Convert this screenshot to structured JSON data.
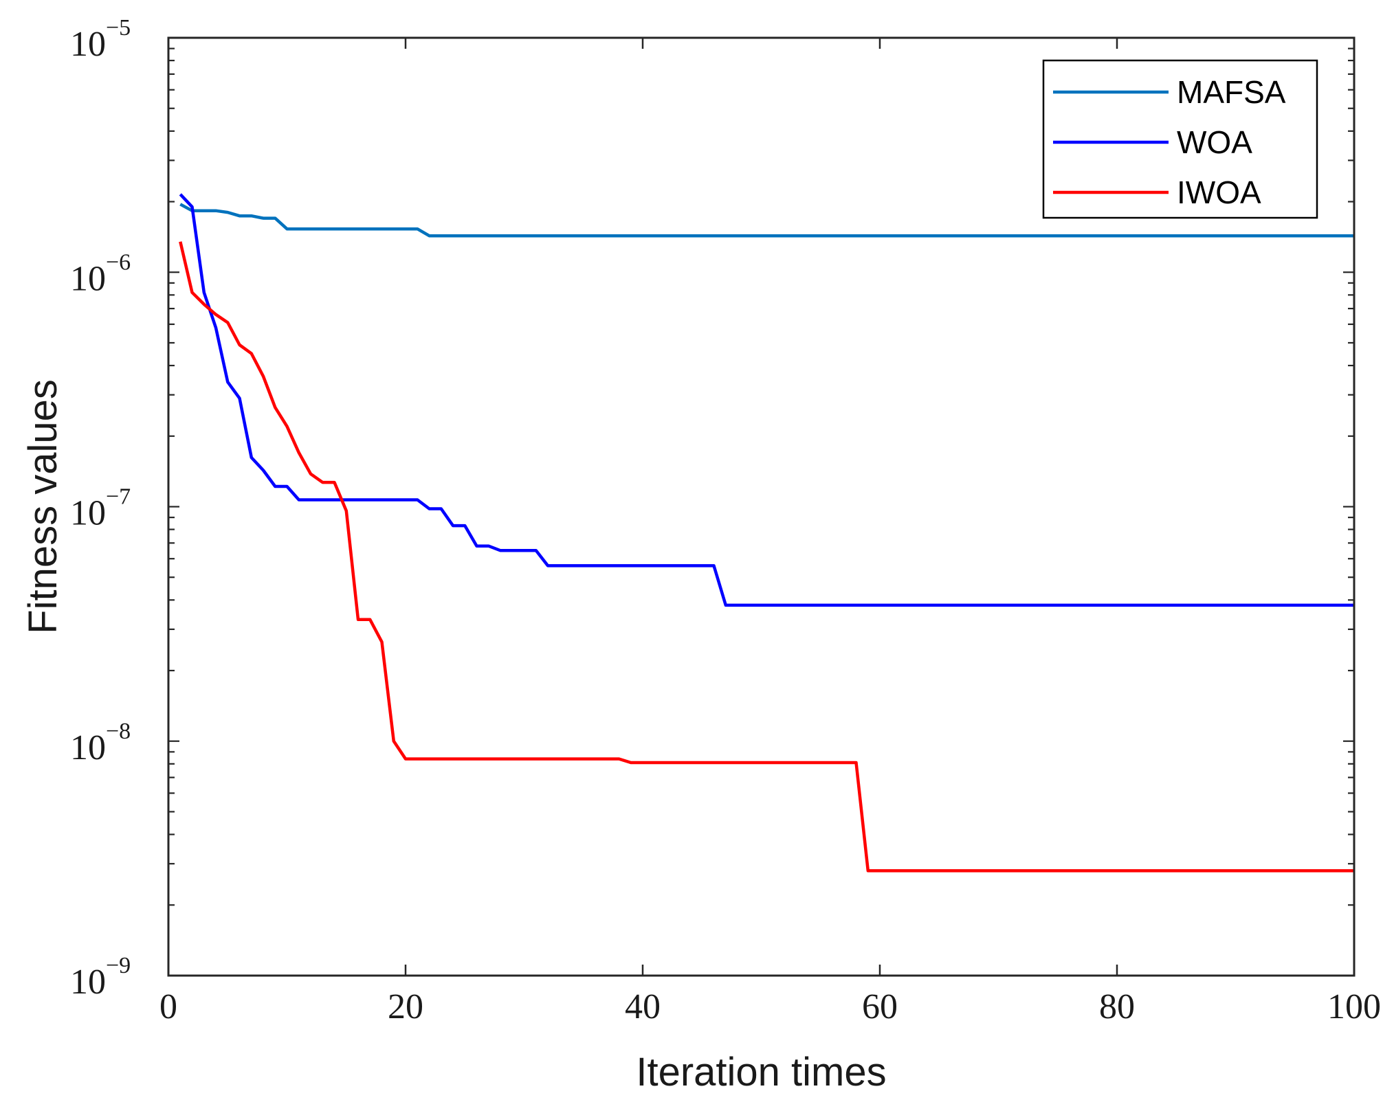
{
  "chart_data": {
    "type": "line",
    "title": "",
    "xlabel": "Iteration times",
    "ylabel": "Fitness values",
    "xlim": [
      0,
      100
    ],
    "ylim": [
      1e-09,
      1e-05
    ],
    "yscale": "log",
    "xticks": [
      0,
      20,
      40,
      60,
      80,
      100
    ],
    "xtick_labels": [
      "0",
      "20",
      "40",
      "60",
      "80",
      "100"
    ],
    "yticks": [
      {
        "value": 1e-09,
        "base": "10",
        "exp": "−9"
      },
      {
        "value": 1e-08,
        "base": "10",
        "exp": "−8"
      },
      {
        "value": 1e-07,
        "base": "10",
        "exp": "−7"
      },
      {
        "value": 1e-06,
        "base": "10",
        "exp": "−6"
      },
      {
        "value": 1e-05,
        "base": "10",
        "exp": "−5"
      }
    ],
    "grid": false,
    "legend_position": "top-right",
    "series": [
      {
        "name": "MAFSA",
        "color": "#0072BD",
        "points": [
          [
            1,
            1.95e-06
          ],
          [
            2,
            1.83e-06
          ],
          [
            3,
            1.83e-06
          ],
          [
            4,
            1.83e-06
          ],
          [
            5,
            1.8e-06
          ],
          [
            6,
            1.74e-06
          ],
          [
            7,
            1.74e-06
          ],
          [
            8,
            1.7e-06
          ],
          [
            9,
            1.7e-06
          ],
          [
            10,
            1.53e-06
          ],
          [
            21,
            1.53e-06
          ],
          [
            22,
            1.43e-06
          ],
          [
            100,
            1.43e-06
          ]
        ]
      },
      {
        "name": "WOA",
        "color": "#0000FF",
        "points": [
          [
            1,
            2.15e-06
          ],
          [
            2,
            1.9e-06
          ],
          [
            3,
            8.2e-07
          ],
          [
            4,
            5.8e-07
          ],
          [
            5,
            3.4e-07
          ],
          [
            6,
            2.9e-07
          ],
          [
            7,
            1.62e-07
          ],
          [
            8,
            1.43e-07
          ],
          [
            9,
            1.22e-07
          ],
          [
            10,
            1.22e-07
          ],
          [
            11,
            1.07e-07
          ],
          [
            21,
            1.07e-07
          ],
          [
            22,
            9.8e-08
          ],
          [
            23,
            9.8e-08
          ],
          [
            24,
            8.3e-08
          ],
          [
            25,
            8.3e-08
          ],
          [
            26,
            6.8e-08
          ],
          [
            27,
            6.8e-08
          ],
          [
            28,
            6.5e-08
          ],
          [
            31,
            6.5e-08
          ],
          [
            32,
            5.6e-08
          ],
          [
            46,
            5.6e-08
          ],
          [
            47,
            3.8e-08
          ],
          [
            100,
            3.8e-08
          ]
        ]
      },
      {
        "name": "IWOA",
        "color": "#FF0000",
        "points": [
          [
            1,
            1.35e-06
          ],
          [
            2,
            8.2e-07
          ],
          [
            3,
            7.3e-07
          ],
          [
            4,
            6.6e-07
          ],
          [
            5,
            6.1e-07
          ],
          [
            6,
            4.9e-07
          ],
          [
            7,
            4.5e-07
          ],
          [
            8,
            3.6e-07
          ],
          [
            9,
            2.65e-07
          ],
          [
            10,
            2.2e-07
          ],
          [
            11,
            1.7e-07
          ],
          [
            12,
            1.38e-07
          ],
          [
            13,
            1.27e-07
          ],
          [
            14,
            1.27e-07
          ],
          [
            15,
            9.6e-08
          ],
          [
            16,
            3.3e-08
          ],
          [
            17,
            3.3e-08
          ],
          [
            18,
            2.65e-08
          ],
          [
            19,
            1e-08
          ],
          [
            20,
            8.4e-09
          ],
          [
            38,
            8.4e-09
          ],
          [
            39,
            8.1e-09
          ],
          [
            58,
            8.1e-09
          ],
          [
            59,
            2.8e-09
          ],
          [
            100,
            2.8e-09
          ]
        ]
      }
    ]
  }
}
